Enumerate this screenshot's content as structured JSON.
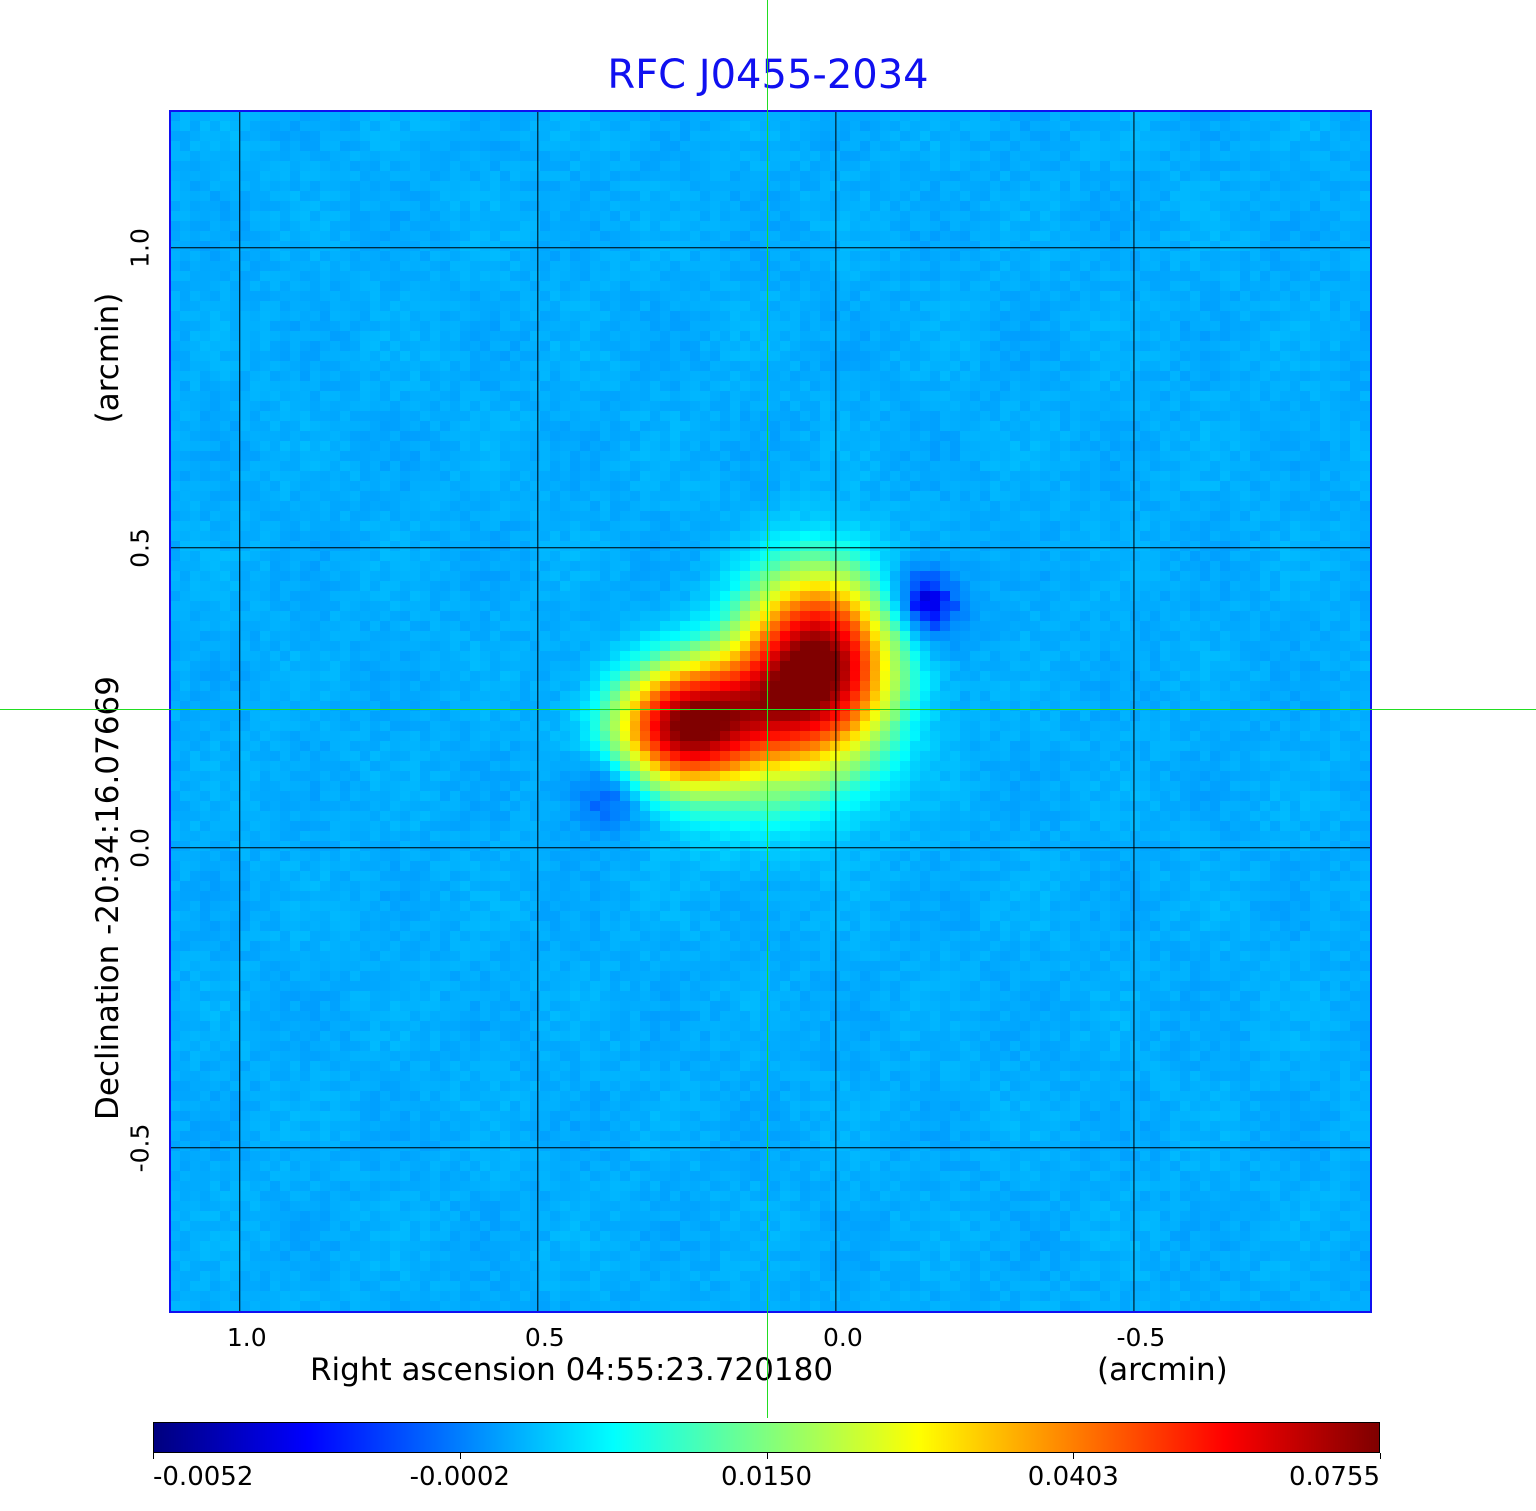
{
  "chart_data": {
    "type": "heatmap",
    "title": "RFC J0455-2034",
    "xlabel": "Right ascension  04:55:23.720180",
    "xunit": "(arcmin)",
    "ylabel": "Declination  -20:34:16.07669",
    "yunit": "(arcmin)",
    "xlim": [
      1.117,
      -0.896
    ],
    "ylim": [
      -0.772,
      1.228
    ],
    "xticks": [
      {
        "value": 1.0,
        "label": "1.0"
      },
      {
        "value": 0.5,
        "label": "0.5"
      },
      {
        "value": 0.0,
        "label": "0.0"
      },
      {
        "value": -0.5,
        "label": "-0.5"
      }
    ],
    "yticks": [
      {
        "value": 1.0,
        "label": "1.0"
      },
      {
        "value": 0.5,
        "label": "0.5"
      },
      {
        "value": 0.0,
        "label": "0.0"
      },
      {
        "value": -0.5,
        "label": "-0.5"
      }
    ],
    "grid": true,
    "crosshair": {
      "x": 0.116,
      "y": 0.232
    },
    "colormap": "jet",
    "colorbar": {
      "position": "bottom",
      "ticks": [
        {
          "value": -0.0052,
          "label": "-0.0052"
        },
        {
          "value": -0.0002,
          "label": "-0.0002"
        },
        {
          "value": 0.015,
          "label": "0.0150"
        },
        {
          "value": 0.0403,
          "label": "0.0403"
        },
        {
          "value": 0.0755,
          "label": "0.0755"
        }
      ]
    },
    "background_level": 0.0025,
    "components": [
      {
        "x": 0.03,
        "y": 0.31,
        "sx": 0.075,
        "sy": 0.09,
        "amp": 0.073
      },
      {
        "x": 0.255,
        "y": 0.2,
        "sx": 0.07,
        "sy": 0.06,
        "amp": 0.062
      },
      {
        "x": 0.14,
        "y": 0.24,
        "sx": 0.08,
        "sy": 0.06,
        "amp": 0.03
      },
      {
        "x": 0.12,
        "y": 0.17,
        "sx": 0.12,
        "sy": 0.09,
        "amp": 0.012
      },
      {
        "x": -0.135,
        "y": 0.405,
        "sx": 0.05,
        "sy": 0.045,
        "amp": -0.0085
      },
      {
        "x": 0.37,
        "y": 0.105,
        "sx": 0.05,
        "sy": 0.05,
        "amp": -0.0065
      }
    ]
  }
}
